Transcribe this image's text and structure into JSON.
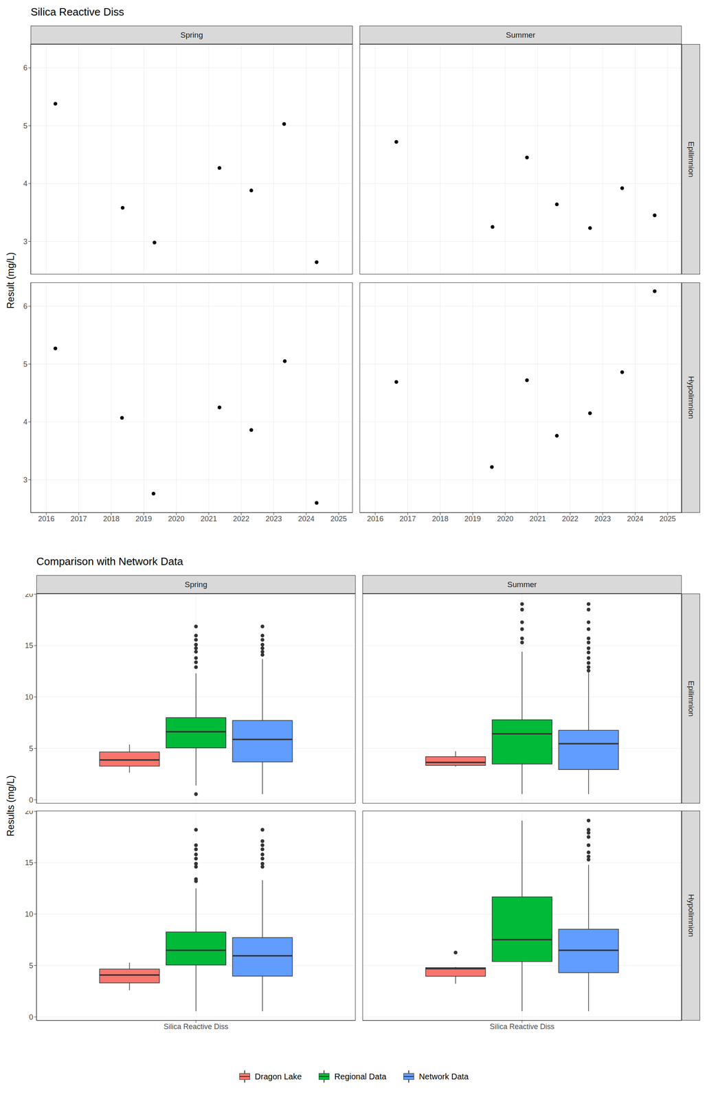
{
  "chart_data": [
    {
      "type": "scatter",
      "title": "Silica Reactive Diss",
      "y_label": "Result (mg/L)",
      "columns": [
        "Spring",
        "Summer"
      ],
      "rows": [
        "Epilimnion",
        "Hypolimnion"
      ],
      "color": "#000000",
      "marker": "circle",
      "grid": true,
      "xlim": [
        2015.52,
        2025.43
      ],
      "xticks": [
        2016,
        2017,
        2018,
        2019,
        2020,
        2021,
        2022,
        2023,
        2024,
        2025
      ],
      "ylim": [
        2.43,
        6.41
      ],
      "yticks": [
        3,
        4,
        5,
        6
      ],
      "panels": [
        {
          "column": "Spring",
          "row": "Epilimnion",
          "x": [
            2016.28,
            2018.35,
            2019.33,
            2021.33,
            2022.31,
            2023.32,
            2024.32
          ],
          "values": [
            5.38,
            3.58,
            2.98,
            4.27,
            3.88,
            5.03,
            2.64
          ]
        },
        {
          "column": "Summer",
          "row": "Epilimnion",
          "x": [
            2016.65,
            2019.61,
            2020.67,
            2021.59,
            2022.61,
            2023.6,
            2024.6
          ],
          "values": [
            4.72,
            3.25,
            4.45,
            3.64,
            3.23,
            3.92,
            3.45
          ]
        },
        {
          "column": "Spring",
          "row": "Hypolimnion",
          "x": [
            2016.28,
            2018.33,
            2019.3,
            2021.33,
            2022.31,
            2023.34,
            2024.32
          ],
          "values": [
            5.27,
            4.07,
            2.76,
            4.25,
            3.86,
            5.05,
            2.6
          ]
        },
        {
          "column": "Summer",
          "row": "Hypolimnion",
          "x": [
            2016.65,
            2019.59,
            2020.67,
            2021.59,
            2022.61,
            2023.6,
            2024.6
          ],
          "values": [
            4.69,
            3.22,
            4.72,
            3.76,
            4.15,
            4.86,
            6.26
          ]
        }
      ]
    },
    {
      "type": "box",
      "title": "Comparison with Network Data",
      "y_label": "Results (mg/L)",
      "columns": [
        "Spring",
        "Summer"
      ],
      "rows": [
        "Epilimnion",
        "Hypolimnion"
      ],
      "categories": [
        "Silica Reactive Diss"
      ],
      "grid": true,
      "legend": "bottom",
      "ylim": [
        -0.35,
        20.05
      ],
      "yticks": [
        0,
        5,
        10,
        15,
        20
      ],
      "series": [
        {
          "name": "Dragon Lake",
          "color": "#F8766D"
        },
        {
          "name": "Regional Data",
          "color": "#00BA38"
        },
        {
          "name": "Network Data",
          "color": "#619CFF"
        }
      ],
      "panels": [
        {
          "column": "Spring",
          "row": "Epilimnion",
          "boxes": [
            {
              "series": "Dragon Lake",
              "min": 2.64,
              "q1": 3.28,
              "median": 3.88,
              "q3": 4.65,
              "max": 5.38,
              "outliers": []
            },
            {
              "series": "Regional Data",
              "min": 1.4,
              "q1": 5.05,
              "median": 6.62,
              "q3": 7.99,
              "max": 12.3,
              "outliers": [
                0.55,
                12.9,
                13.38,
                13.79,
                14.4,
                14.74,
                15.09,
                15.56,
                15.97,
                16.86
              ]
            },
            {
              "series": "Network Data",
              "min": 0.55,
              "q1": 3.69,
              "median": 5.87,
              "q3": 7.71,
              "max": 13.7,
              "outliers": [
                14.1,
                14.4,
                14.74,
                15.09,
                15.56,
                15.97,
                16.86
              ]
            }
          ]
        },
        {
          "column": "Summer",
          "row": "Epilimnion",
          "boxes": [
            {
              "series": "Dragon Lake",
              "min": 3.23,
              "q1": 3.35,
              "median": 3.64,
              "q3": 4.19,
              "max": 4.72,
              "outliers": []
            },
            {
              "series": "Regional Data",
              "min": 0.55,
              "q1": 3.48,
              "median": 6.42,
              "q3": 7.78,
              "max": 14.4,
              "outliers": [
                15.3,
                15.7,
                16.6,
                17.27,
                18.5,
                19.04
              ]
            },
            {
              "series": "Network Data",
              "min": 0.55,
              "q1": 2.94,
              "median": 5.46,
              "q3": 6.76,
              "max": 12.4,
              "outliers": [
                12.56,
                12.9,
                13.31,
                13.79,
                14.33,
                14.74,
                15.3,
                15.7,
                16.6,
                17.27,
                18.5,
                19.04
              ]
            }
          ]
        },
        {
          "column": "Spring",
          "row": "Hypolimnion",
          "boxes": [
            {
              "series": "Dragon Lake",
              "min": 2.6,
              "q1": 3.31,
              "median": 4.07,
              "q3": 4.65,
              "max": 5.27,
              "outliers": []
            },
            {
              "series": "Regional Data",
              "min": 0.55,
              "q1": 5.05,
              "median": 6.48,
              "q3": 8.26,
              "max": 12.5,
              "outliers": [
                13.2,
                13.4,
                14.6,
                14.9,
                15.4,
                15.8,
                16.3,
                16.7,
                18.2
              ]
            },
            {
              "series": "Network Data",
              "min": 0.55,
              "q1": 3.96,
              "median": 5.94,
              "q3": 7.71,
              "max": 13.3,
              "outliers": [
                14.6,
                14.9,
                15.4,
                15.8,
                16.3,
                16.7,
                17.1,
                18.2
              ]
            }
          ]
        },
        {
          "column": "Summer",
          "row": "Hypolimnion",
          "boxes": [
            {
              "series": "Dragon Lake",
              "min": 3.22,
              "q1": 3.95,
              "median": 4.69,
              "q3": 4.79,
              "max": 4.86,
              "outliers": [
                6.26
              ]
            },
            {
              "series": "Regional Data",
              "min": 0.55,
              "q1": 5.39,
              "median": 7.51,
              "q3": 11.67,
              "max": 19.1,
              "outliers": []
            },
            {
              "series": "Network Data",
              "min": 0.55,
              "q1": 4.3,
              "median": 6.48,
              "q3": 8.53,
              "max": 14.8,
              "outliers": [
                15.3,
                15.6,
                16.0,
                16.7,
                17.5,
                17.9,
                18.2,
                19.1
              ]
            }
          ]
        }
      ]
    }
  ]
}
